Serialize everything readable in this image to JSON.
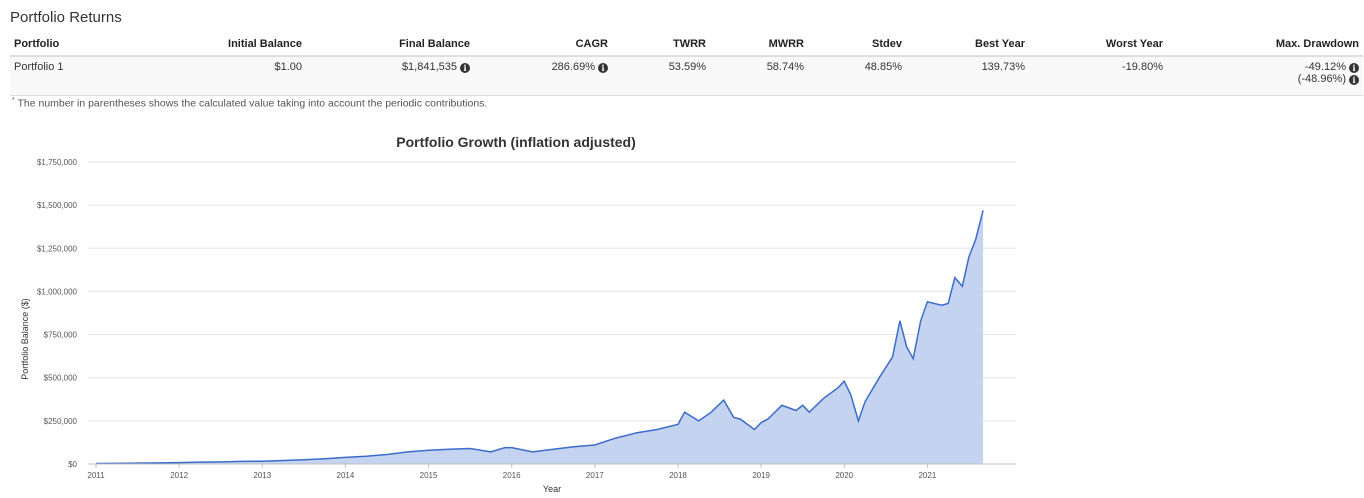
{
  "section_title": "Portfolio Returns",
  "table": {
    "headers": [
      "Portfolio",
      "Initial Balance",
      "Final Balance",
      "CAGR",
      "TWRR",
      "MWRR",
      "Stdev",
      "Best Year",
      "Worst Year",
      "Max. Drawdown"
    ],
    "rows": [
      {
        "portfolio": "Portfolio 1",
        "initial_balance": "$1.00",
        "final_balance": "$1,841,535",
        "cagr": "286.69%",
        "twrr": "53.59%",
        "mwrr": "58.74%",
        "stdev": "48.85%",
        "best_year": "139.73%",
        "worst_year": "-19.80%",
        "max_drawdown": "-49.12%",
        "max_drawdown_contrib": "(-48.96%)"
      }
    ],
    "info_icon": "info-circle-icon"
  },
  "footnote": {
    "marker": "*",
    "text": "The number in parentheses shows the calculated value taking into account the periodic contributions."
  },
  "chart_data": {
    "type": "area",
    "title": "Portfolio Growth (inflation adjusted)",
    "xlabel": "Year",
    "ylabel": "Portfolio Balance ($)",
    "xlim": [
      2011,
      2021.67
    ],
    "ylim": [
      0,
      1750000
    ],
    "x_ticks": [
      "2011",
      "2012",
      "2013",
      "2014",
      "2015",
      "2016",
      "2017",
      "2018",
      "2019",
      "2020",
      "2021"
    ],
    "y_ticks": [
      "$0",
      "$250,000",
      "$500,000",
      "$750,000",
      "$1,000,000",
      "$1,250,000",
      "$1,500,000",
      "$1,750,000"
    ],
    "y_tick_values": [
      0,
      250000,
      500000,
      750000,
      1000000,
      1250000,
      1500000,
      1750000
    ],
    "grid": true,
    "colors": {
      "line": "#3c6ccc",
      "fill": "#c3d3f0"
    },
    "series": [
      {
        "x": [
          2011.0,
          2011.5,
          2012.0,
          2012.25,
          2012.5,
          2012.75,
          2013.0,
          2013.25,
          2013.5,
          2013.75,
          2014.0,
          2014.25,
          2014.5,
          2014.75,
          2015.0,
          2015.25,
          2015.5,
          2015.75,
          2015.92,
          2016.0,
          2016.25,
          2016.5,
          2016.75,
          2017.0,
          2017.25,
          2017.5,
          2017.75,
          2018.0,
          2018.08,
          2018.25,
          2018.4,
          2018.55,
          2018.67,
          2018.75,
          2018.92,
          2019.0,
          2019.08,
          2019.25,
          2019.42,
          2019.5,
          2019.58,
          2019.75,
          2019.92,
          2020.0,
          2020.08,
          2020.17,
          2020.25,
          2020.42,
          2020.58,
          2020.67,
          2020.75,
          2020.83,
          2020.92,
          2021.0,
          2021.17,
          2021.25,
          2021.33,
          2021.42,
          2021.5,
          2021.58,
          2021.67
        ],
        "values": [
          3000,
          5000,
          8000,
          11000,
          12000,
          15000,
          16000,
          20000,
          25000,
          30000,
          38000,
          45000,
          55000,
          70000,
          80000,
          85000,
          90000,
          70000,
          95000,
          95000,
          70000,
          85000,
          100000,
          110000,
          150000,
          180000,
          200000,
          230000,
          300000,
          250000,
          300000,
          370000,
          270000,
          260000,
          200000,
          240000,
          260000,
          340000,
          310000,
          340000,
          300000,
          380000,
          440000,
          480000,
          400000,
          250000,
          360000,
          500000,
          620000,
          830000,
          680000,
          610000,
          830000,
          940000,
          920000,
          930000,
          1080000,
          1030000,
          1200000,
          1300000,
          1470000
        ]
      }
    ]
  }
}
